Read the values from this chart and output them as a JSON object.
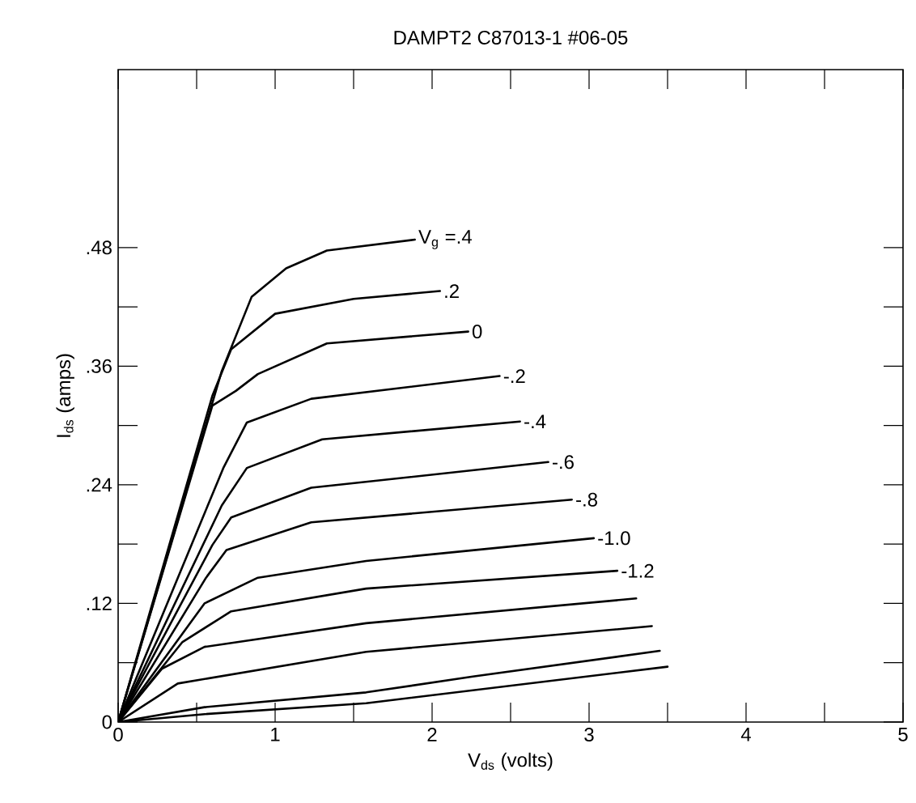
{
  "chart_data": {
    "type": "line",
    "title": "DAMPT2 C87013-1  #06-05",
    "xlabel": "V$_{ds}$  (volts)",
    "ylabel": "I$_{ds}$ (amps)",
    "xlim": [
      0,
      5
    ],
    "ylim": [
      0,
      0.66
    ],
    "xticks": [
      0,
      {
        "value": 0.5,
        "label": null
      },
      1,
      {
        "value": 1.5,
        "label": null
      },
      2,
      {
        "value": 2.5,
        "label": null
      },
      3,
      {
        "value": 3.5,
        "label": null
      },
      4,
      {
        "value": 4.5,
        "label": null
      },
      5
    ],
    "yticks": [
      0,
      {
        "value": 0.06,
        "label": null
      },
      {
        "value": 0.12,
        "label": ".12"
      },
      {
        "value": 0.18,
        "label": null
      },
      {
        "value": 0.24,
        "label": ".24"
      },
      {
        "value": 0.3,
        "label": null
      },
      {
        "value": 0.36,
        "label": ".36"
      },
      {
        "value": 0.42,
        "label": null
      },
      {
        "value": 0.48,
        "label": ".48"
      }
    ],
    "grid": false,
    "legend": false,
    "marker": "none",
    "series": [
      {
        "name": "V$_{g}$ =.4",
        "color": "#000000",
        "x": [
          0,
          0.66,
          0.85,
          1.07,
          1.33,
          1.89
        ],
        "values": [
          0,
          0.355,
          0.43,
          0.459,
          0.477,
          0.488
        ]
      },
      {
        "name": ".2",
        "color": "#000000",
        "x": [
          0,
          0.6,
          0.72,
          1.0,
          1.5,
          2.05
        ],
        "values": [
          0,
          0.33,
          0.377,
          0.413,
          0.428,
          0.436
        ]
      },
      {
        "name": "0",
        "color": "#000000",
        "x": [
          0,
          0.6,
          0.75,
          0.89,
          1.33,
          2.23
        ],
        "values": [
          0,
          0.32,
          0.335,
          0.352,
          0.383,
          0.395
        ]
      },
      {
        "name": "-.2",
        "color": "#000000",
        "x": [
          0,
          0.67,
          0.82,
          1.23,
          2.43
        ],
        "values": [
          0,
          0.257,
          0.303,
          0.327,
          0.35
        ]
      },
      {
        "name": "-.4",
        "color": "#000000",
        "x": [
          0,
          0.66,
          0.82,
          1.3,
          2.56
        ],
        "values": [
          0,
          0.219,
          0.257,
          0.286,
          0.304
        ]
      },
      {
        "name": "-.6",
        "color": "#000000",
        "x": [
          0,
          0.6,
          0.72,
          1.23,
          2.74
        ],
        "values": [
          0,
          0.179,
          0.207,
          0.237,
          0.263
        ]
      },
      {
        "name": "-.8",
        "color": "#000000",
        "x": [
          0,
          0.56,
          0.69,
          1.23,
          2.89
        ],
        "values": [
          0,
          0.146,
          0.174,
          0.202,
          0.225
        ]
      },
      {
        "name": "-1.0",
        "color": "#000000",
        "x": [
          0,
          0.55,
          0.89,
          1.58,
          3.03
        ],
        "values": [
          0,
          0.12,
          0.146,
          0.163,
          0.186
        ]
      },
      {
        "name": "-1.2",
        "color": "#000000",
        "x": [
          0,
          0.41,
          0.72,
          1.58,
          3.18
        ],
        "values": [
          0,
          0.081,
          0.112,
          0.135,
          0.153
        ]
      },
      {
        "color": "#000000",
        "x": [
          0,
          0.28,
          0.55,
          1.58,
          3.3
        ],
        "values": [
          0,
          0.054,
          0.076,
          0.1,
          0.125
        ]
      },
      {
        "color": "#000000",
        "x": [
          0,
          0.38,
          1.58,
          3.4
        ],
        "values": [
          0,
          0.039,
          0.071,
          0.097
        ]
      },
      {
        "color": "#000000",
        "x": [
          0,
          0.55,
          1.58,
          2.26,
          3.45
        ],
        "values": [
          0,
          0.015,
          0.03,
          0.046,
          0.072
        ]
      },
      {
        "color": "#000000",
        "x": [
          0,
          0.55,
          1.58,
          3.5
        ],
        "values": [
          0,
          0.008,
          0.019,
          0.056
        ]
      }
    ]
  }
}
